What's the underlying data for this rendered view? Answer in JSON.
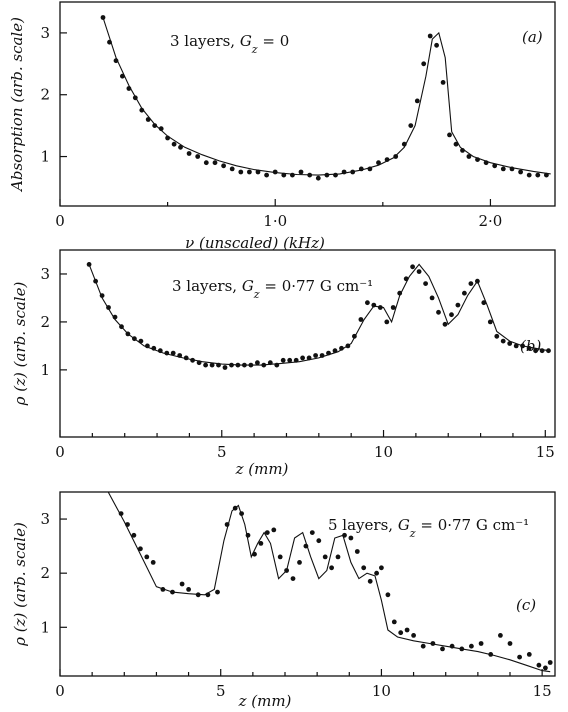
{
  "chart_data": [
    {
      "type": "scatter",
      "title": "3 layers, G_z = 0",
      "panel_label": "(a)",
      "xlabel": "ν (unscaled) (kHz)",
      "ylabel": "Absorption (arb. scale)",
      "xlim": [
        0,
        2.3
      ],
      "ylim": [
        0.2,
        3.5
      ],
      "xticks": [
        {
          "v": 0,
          "label": "0"
        },
        {
          "v": 1.0,
          "label": "1·0"
        },
        {
          "v": 2.0,
          "label": "2·0"
        }
      ],
      "xminor": [
        0.5,
        1.5
      ],
      "yticks": [
        {
          "v": 1,
          "label": "1"
        },
        {
          "v": 2,
          "label": "2"
        },
        {
          "v": 3,
          "label": "3"
        }
      ],
      "series": [
        {
          "kind": "points",
          "x": [
            0.2,
            0.23,
            0.26,
            0.29,
            0.32,
            0.35,
            0.38,
            0.41,
            0.44,
            0.47,
            0.5,
            0.53,
            0.56,
            0.6,
            0.64,
            0.68,
            0.72,
            0.76,
            0.8,
            0.84,
            0.88,
            0.92,
            0.96,
            1.0,
            1.04,
            1.08,
            1.12,
            1.16,
            1.2,
            1.24,
            1.28,
            1.32,
            1.36,
            1.4,
            1.44,
            1.48,
            1.52,
            1.56,
            1.6,
            1.63,
            1.66,
            1.69,
            1.72,
            1.75,
            1.78,
            1.81,
            1.84,
            1.87,
            1.9,
            1.94,
            1.98,
            2.02,
            2.06,
            2.1,
            2.14,
            2.18,
            2.22,
            2.26
          ],
          "y": [
            3.25,
            2.85,
            2.55,
            2.3,
            2.1,
            1.95,
            1.75,
            1.6,
            1.5,
            1.45,
            1.3,
            1.2,
            1.15,
            1.05,
            1.0,
            0.9,
            0.9,
            0.85,
            0.8,
            0.75,
            0.75,
            0.75,
            0.7,
            0.75,
            0.7,
            0.7,
            0.75,
            0.7,
            0.65,
            0.7,
            0.7,
            0.75,
            0.75,
            0.8,
            0.8,
            0.9,
            0.95,
            1.0,
            1.2,
            1.5,
            1.9,
            2.5,
            2.95,
            2.8,
            2.2,
            1.35,
            1.2,
            1.1,
            1.0,
            0.95,
            0.9,
            0.85,
            0.8,
            0.8,
            0.75,
            0.7,
            0.7,
            0.7
          ]
        },
        {
          "kind": "line",
          "x": [
            0.2,
            0.26,
            0.32,
            0.38,
            0.44,
            0.5,
            0.58,
            0.66,
            0.74,
            0.82,
            0.9,
            1.0,
            1.1,
            1.2,
            1.3,
            1.4,
            1.48,
            1.55,
            1.6,
            1.65,
            1.7,
            1.73,
            1.76,
            1.79,
            1.82,
            1.86,
            1.92,
            2.0,
            2.1,
            2.2,
            2.28
          ],
          "y": [
            3.25,
            2.6,
            2.15,
            1.78,
            1.52,
            1.33,
            1.15,
            1.03,
            0.93,
            0.85,
            0.79,
            0.74,
            0.71,
            0.7,
            0.72,
            0.78,
            0.86,
            0.98,
            1.15,
            1.5,
            2.3,
            2.9,
            3.0,
            2.6,
            1.4,
            1.15,
            1.0,
            0.9,
            0.82,
            0.76,
            0.72
          ]
        }
      ]
    },
    {
      "type": "scatter",
      "title": "3 layers, G_z = 0·77 G cm⁻¹",
      "panel_label": "(b)",
      "xlabel": "z (mm)",
      "ylabel": "ρ (z) (arb. scale)",
      "xlim": [
        0,
        15.3
      ],
      "ylim": [
        -0.4,
        3.5
      ],
      "xticks": [
        {
          "v": 0,
          "label": "0"
        },
        {
          "v": 5,
          "label": "5"
        },
        {
          "v": 10,
          "label": "10"
        },
        {
          "v": 15,
          "label": "15"
        }
      ],
      "xminor": [
        1,
        2,
        3,
        4,
        6,
        7,
        8,
        9,
        11,
        12,
        13,
        14
      ],
      "yticks": [
        {
          "v": 1,
          "label": "1"
        },
        {
          "v": 2,
          "label": "2"
        },
        {
          "v": 3,
          "label": "3"
        }
      ],
      "series": [
        {
          "kind": "points",
          "x": [
            0.9,
            1.1,
            1.3,
            1.5,
            1.7,
            1.9,
            2.1,
            2.3,
            2.5,
            2.7,
            2.9,
            3.1,
            3.3,
            3.5,
            3.7,
            3.9,
            4.1,
            4.3,
            4.5,
            4.7,
            4.9,
            5.1,
            5.3,
            5.5,
            5.7,
            5.9,
            6.1,
            6.3,
            6.5,
            6.7,
            6.9,
            7.1,
            7.3,
            7.5,
            7.7,
            7.9,
            8.1,
            8.3,
            8.5,
            8.7,
            8.9,
            9.1,
            9.3,
            9.5,
            9.7,
            9.9,
            10.1,
            10.3,
            10.5,
            10.7,
            10.9,
            11.1,
            11.3,
            11.5,
            11.7,
            11.9,
            12.1,
            12.3,
            12.5,
            12.7,
            12.9,
            13.1,
            13.3,
            13.5,
            13.7,
            13.9,
            14.1,
            14.3,
            14.5,
            14.7,
            14.9,
            15.1
          ],
          "y": [
            3.2,
            2.85,
            2.55,
            2.3,
            2.1,
            1.9,
            1.75,
            1.65,
            1.6,
            1.5,
            1.45,
            1.4,
            1.35,
            1.35,
            1.3,
            1.25,
            1.2,
            1.15,
            1.1,
            1.1,
            1.1,
            1.05,
            1.1,
            1.1,
            1.1,
            1.1,
            1.15,
            1.1,
            1.15,
            1.1,
            1.2,
            1.2,
            1.2,
            1.25,
            1.25,
            1.3,
            1.3,
            1.35,
            1.4,
            1.45,
            1.5,
            1.7,
            2.05,
            2.4,
            2.35,
            2.3,
            2.0,
            2.3,
            2.6,
            2.9,
            3.15,
            3.05,
            2.8,
            2.5,
            2.2,
            1.95,
            2.15,
            2.35,
            2.6,
            2.8,
            2.85,
            2.4,
            2.0,
            1.7,
            1.6,
            1.55,
            1.5,
            1.5,
            1.45,
            1.4,
            1.4,
            1.4
          ]
        },
        {
          "kind": "line",
          "x": [
            0.9,
            1.3,
            1.7,
            2.1,
            2.6,
            3.2,
            3.8,
            4.4,
            5.0,
            5.6,
            6.2,
            6.8,
            7.4,
            8.0,
            8.6,
            9.0,
            9.4,
            9.7,
            10.0,
            10.25,
            10.5,
            10.8,
            11.1,
            11.4,
            11.7,
            12.0,
            12.3,
            12.6,
            12.9,
            13.2,
            13.5,
            13.9,
            14.3,
            14.7,
            15.1
          ],
          "y": [
            3.2,
            2.5,
            2.05,
            1.75,
            1.5,
            1.35,
            1.25,
            1.17,
            1.12,
            1.1,
            1.1,
            1.13,
            1.17,
            1.25,
            1.38,
            1.55,
            2.05,
            2.33,
            2.3,
            2.0,
            2.55,
            2.95,
            3.2,
            2.95,
            2.5,
            1.95,
            2.15,
            2.55,
            2.85,
            2.35,
            1.8,
            1.6,
            1.5,
            1.45,
            1.4
          ]
        }
      ]
    },
    {
      "type": "scatter",
      "title": "5 layers, G_z = 0·77 G cm⁻¹",
      "panel_label": "(c)",
      "xlabel": "z (mm)",
      "ylabel": "ρ (z) (arb. scale)",
      "xlim": [
        0,
        15.4
      ],
      "ylim": [
        0.1,
        3.5
      ],
      "xticks": [
        {
          "v": 0,
          "label": "0"
        },
        {
          "v": 5,
          "label": "5"
        },
        {
          "v": 10,
          "label": "10"
        },
        {
          "v": 15,
          "label": "15"
        }
      ],
      "xminor": [
        1,
        2,
        3,
        4,
        6,
        7,
        8,
        9,
        11,
        12,
        13,
        14
      ],
      "yticks": [
        {
          "v": 1,
          "label": "1"
        },
        {
          "v": 2,
          "label": "2"
        },
        {
          "v": 3,
          "label": "3"
        }
      ],
      "series": [
        {
          "kind": "points",
          "x": [
            1.9,
            2.1,
            2.3,
            2.5,
            2.7,
            2.9,
            3.2,
            3.5,
            3.8,
            4.0,
            4.3,
            4.6,
            4.9,
            5.2,
            5.45,
            5.65,
            5.85,
            6.05,
            6.25,
            6.45,
            6.65,
            6.85,
            7.05,
            7.25,
            7.45,
            7.65,
            7.85,
            8.05,
            8.25,
            8.45,
            8.65,
            8.85,
            9.05,
            9.25,
            9.45,
            9.65,
            9.85,
            10.0,
            10.2,
            10.4,
            10.6,
            10.8,
            11.0,
            11.3,
            11.6,
            11.9,
            12.2,
            12.5,
            12.8,
            13.1,
            13.4,
            13.7,
            14.0,
            14.3,
            14.6,
            14.9,
            15.1,
            15.25
          ],
          "y": [
            3.1,
            2.9,
            2.7,
            2.45,
            2.3,
            2.2,
            1.7,
            1.65,
            1.8,
            1.7,
            1.6,
            1.6,
            1.65,
            2.9,
            3.2,
            3.1,
            2.7,
            2.35,
            2.55,
            2.75,
            2.8,
            2.3,
            2.05,
            1.9,
            2.2,
            2.5,
            2.75,
            2.6,
            2.3,
            2.1,
            2.3,
            2.7,
            2.65,
            2.4,
            2.1,
            1.85,
            2.0,
            2.1,
            1.6,
            1.1,
            0.9,
            0.95,
            0.85,
            0.65,
            0.7,
            0.6,
            0.65,
            0.6,
            0.65,
            0.7,
            0.5,
            0.85,
            0.7,
            0.45,
            0.5,
            0.3,
            0.25,
            0.35
          ]
        },
        {
          "kind": "line",
          "x": [
            1.5,
            2.0,
            2.5,
            3.0,
            3.5,
            4.0,
            4.5,
            4.8,
            5.1,
            5.35,
            5.55,
            5.75,
            5.95,
            6.15,
            6.35,
            6.55,
            6.8,
            7.05,
            7.3,
            7.55,
            7.8,
            8.05,
            8.3,
            8.55,
            8.8,
            9.05,
            9.3,
            9.55,
            9.8,
            10.0,
            10.2,
            10.5,
            11.0,
            11.5,
            12.0,
            12.5,
            13.0,
            13.5,
            14.0,
            14.5,
            15.0,
            15.25
          ],
          "y": [
            3.5,
            2.95,
            2.35,
            1.75,
            1.65,
            1.62,
            1.6,
            1.7,
            2.6,
            3.15,
            3.25,
            2.9,
            2.3,
            2.55,
            2.75,
            2.55,
            1.9,
            2.05,
            2.65,
            2.75,
            2.3,
            1.9,
            2.05,
            2.65,
            2.7,
            2.2,
            1.9,
            2.0,
            1.95,
            1.5,
            0.95,
            0.82,
            0.75,
            0.7,
            0.65,
            0.6,
            0.55,
            0.48,
            0.4,
            0.3,
            0.2,
            0.18
          ]
        }
      ]
    }
  ]
}
